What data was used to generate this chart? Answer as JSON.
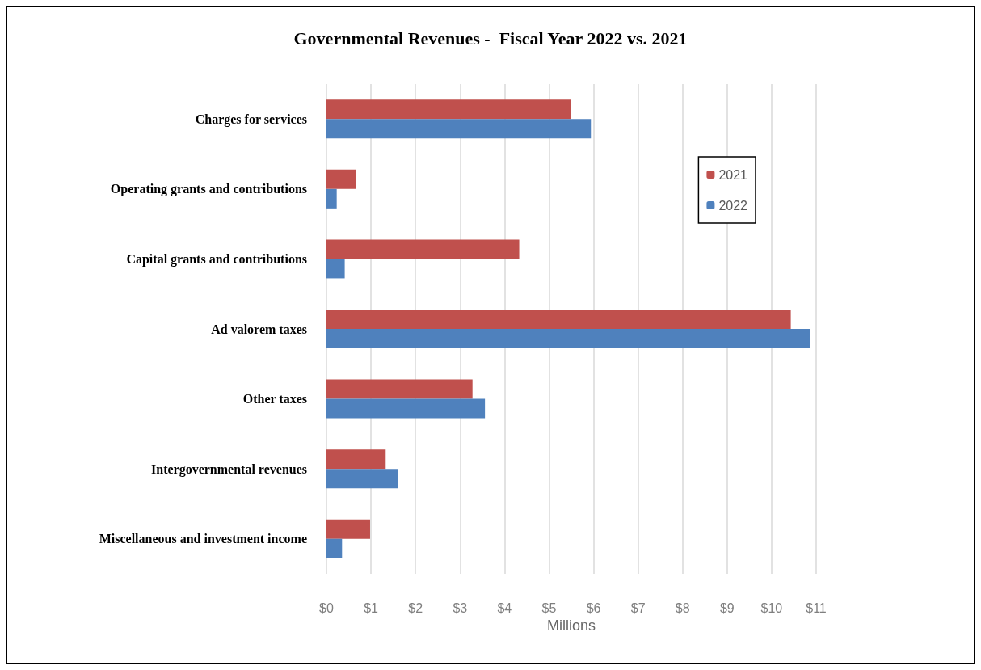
{
  "chart_data": {
    "type": "bar",
    "orientation": "horizontal",
    "title": "Governmental Revenues -  Fiscal Year 2022 vs. 2021",
    "xlabel": "Millions",
    "categories": [
      "Charges for services",
      "Operating grants and contributions",
      "Capital grants and contributions",
      "Ad valorem taxes",
      "Other taxes",
      "Intergovernmental revenues",
      "Miscellaneous and investment income"
    ],
    "series": [
      {
        "name": "2021",
        "color": "#c0504d",
        "values": [
          5.5,
          0.66,
          4.33,
          10.43,
          3.28,
          1.33,
          0.98
        ]
      },
      {
        "name": "2022",
        "color": "#4f81bd",
        "values": [
          5.94,
          0.23,
          0.41,
          10.87,
          3.56,
          1.6,
          0.35
        ]
      }
    ],
    "xlim": [
      0,
      11
    ],
    "xticks": [
      {
        "value": 0,
        "label": "$0"
      },
      {
        "value": 1,
        "label": "$1"
      },
      {
        "value": 2,
        "label": "$2"
      },
      {
        "value": 3,
        "label": "$3"
      },
      {
        "value": 4,
        "label": "$4"
      },
      {
        "value": 5,
        "label": "$5"
      },
      {
        "value": 6,
        "label": "$6"
      },
      {
        "value": 7,
        "label": "$7"
      },
      {
        "value": 8,
        "label": "$8"
      },
      {
        "value": 9,
        "label": "$9"
      },
      {
        "value": 10,
        "label": "$10"
      },
      {
        "value": 11,
        "label": "$11"
      }
    ],
    "grid": "x",
    "legend": "top right"
  }
}
